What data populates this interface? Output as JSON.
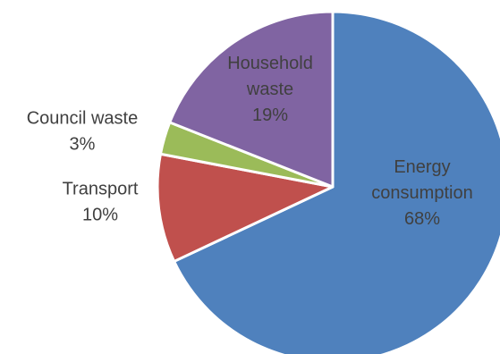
{
  "chart_data": {
    "type": "pie",
    "title": "",
    "slices": [
      {
        "label_lines": [
          "Energy",
          "consumption"
        ],
        "value": 68,
        "value_label": "68%",
        "color": "#4F81BD"
      },
      {
        "label_lines": [
          "Transport"
        ],
        "value": 10,
        "value_label": "10%",
        "color": "#C0504D"
      },
      {
        "label_lines": [
          "Council waste"
        ],
        "value": 3,
        "value_label": "3%",
        "color": "#9BBB59"
      },
      {
        "label_lines": [
          "Household",
          "waste"
        ],
        "value": 19,
        "value_label": "19%",
        "color": "#8064A2"
      }
    ],
    "start_angle_deg": 0,
    "direction": "clockwise",
    "slice_border_color": "#FFFFFF",
    "legend": "none"
  }
}
